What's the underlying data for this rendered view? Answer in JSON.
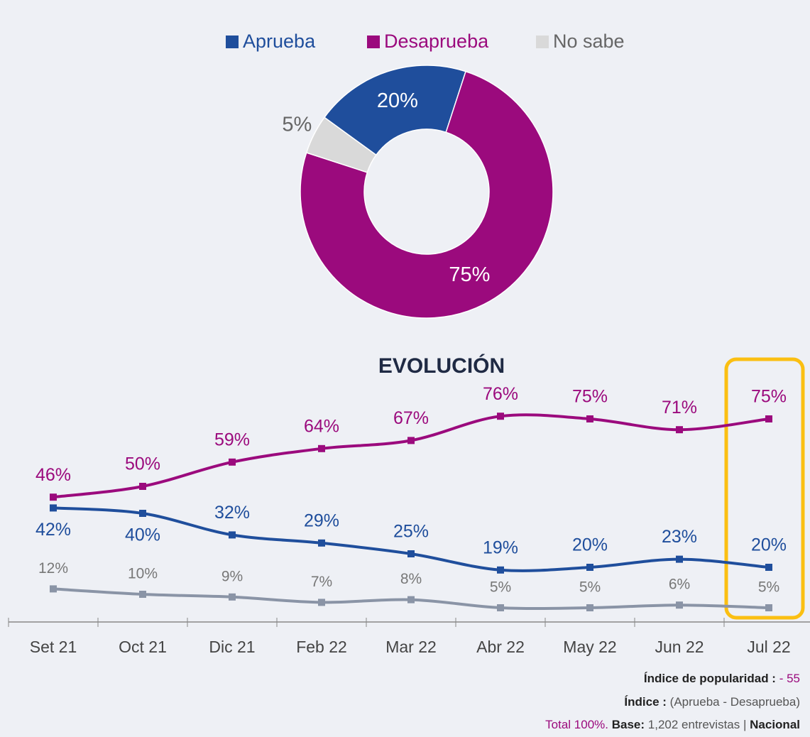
{
  "chart_data": [
    {
      "type": "donut",
      "categories": [
        "Aprueba",
        "Desaprueba",
        "No sabe"
      ],
      "values": [
        20,
        75,
        5
      ],
      "value_labels": [
        "20%",
        "75%",
        "5%"
      ],
      "colors": [
        "#1f4e9c",
        "#9b0a7d",
        "#d9d9d9"
      ],
      "legend": "top"
    },
    {
      "type": "line",
      "title": "EVOLUCIÓN",
      "categories": [
        "Set 21",
        "Oct 21",
        "Dic 21",
        "Feb 22",
        "Mar 22",
        "Abr 22",
        "May 22",
        "Jun 22",
        "Jul 22"
      ],
      "series": [
        {
          "name": "Desaprueba",
          "color": "#9b0a7d",
          "values": [
            46,
            50,
            59,
            64,
            67,
            76,
            75,
            71,
            75
          ],
          "value_labels": [
            "46%",
            "50%",
            "59%",
            "64%",
            "67%",
            "76%",
            "75%",
            "71%",
            "75%"
          ]
        },
        {
          "name": "Aprueba",
          "color": "#1f4e9c",
          "values": [
            42,
            40,
            32,
            29,
            25,
            19,
            20,
            23,
            20
          ],
          "value_labels": [
            "42%",
            "40%",
            "32%",
            "29%",
            "25%",
            "19%",
            "20%",
            "23%",
            "20%"
          ]
        },
        {
          "name": "No sabe",
          "color": "#8a94a6",
          "values": [
            12,
            10,
            9,
            7,
            8,
            5,
            5,
            6,
            5
          ],
          "value_labels": [
            "12%",
            "10%",
            "9%",
            "7%",
            "8%",
            "5%",
            "5%",
            "6%",
            "5%"
          ]
        }
      ]
    }
  ],
  "footer": {
    "index_label": "Índice de popularidad :",
    "index_value": "- 55",
    "formula_label": "Índice :",
    "formula": "(Aprueba - Desaprueba)",
    "total": "Total 100%.",
    "base_label": "Base:",
    "base": "1,202 entrevistas",
    "sep": "|",
    "scope": "Nacional"
  }
}
